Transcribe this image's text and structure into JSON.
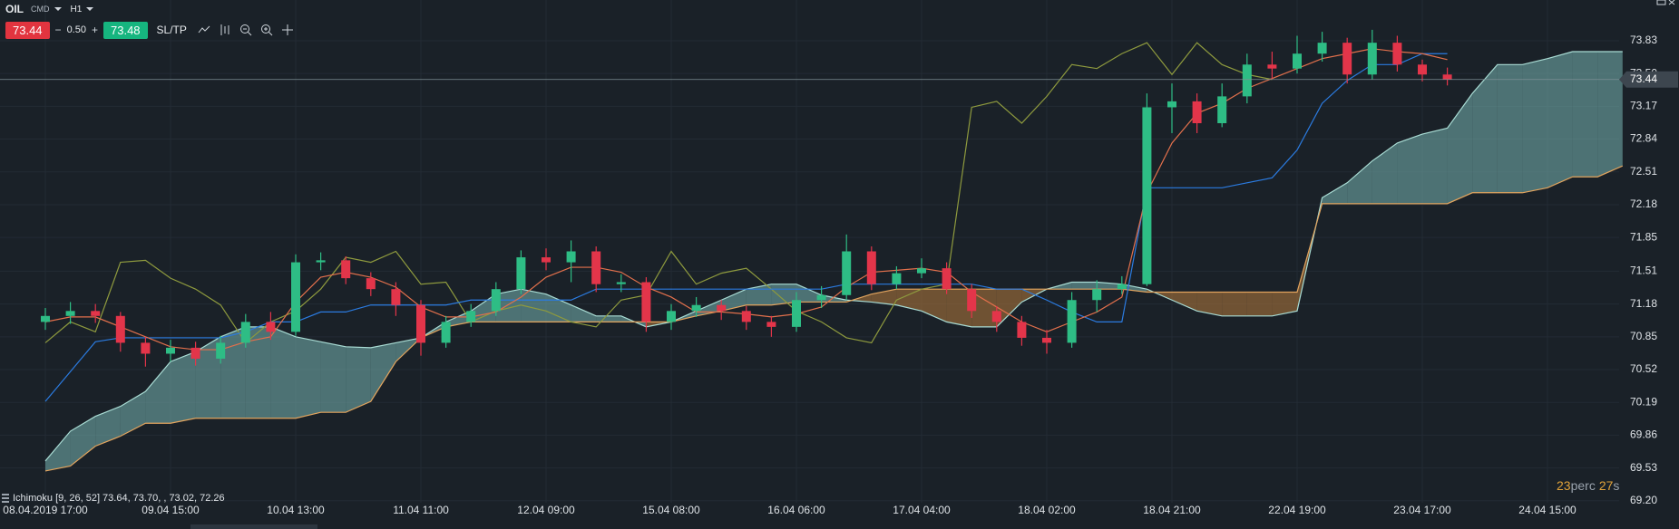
{
  "header": {
    "symbol": "OIL",
    "market": "CMD",
    "timeframe": "H1",
    "sell": "73.44",
    "minus": "−",
    "spread": "0.50",
    "plus": "+",
    "buy": "73.48",
    "sltp": "SL/TP"
  },
  "chart_data": {
    "type": "candlestick",
    "categories": [
      "08.04.2019 17:00",
      null,
      null,
      null,
      null,
      "09.04 15:00",
      null,
      null,
      null,
      null,
      "10.04 13:00",
      null,
      null,
      null,
      null,
      "11.04 11:00",
      null,
      null,
      null,
      null,
      "12.04 09:00",
      null,
      null,
      null,
      null,
      "15.04 08:00",
      null,
      null,
      null,
      null,
      "16.04 06:00",
      null,
      null,
      null,
      null,
      "17.04 04:00",
      null,
      null,
      null,
      null,
      "18.04 02:00",
      null,
      null,
      null,
      null,
      "18.04 21:00",
      null,
      null,
      null,
      null,
      "22.04 19:00",
      null,
      null,
      null,
      null,
      "23.04 17:00",
      null,
      null,
      null,
      null,
      "24.04 15:00",
      null,
      null,
      null
    ],
    "ohlc": {
      "up_color": "#2ebd85",
      "down_color": "#e3354a",
      "open": [
        71.0,
        71.06,
        71.11,
        71.06,
        70.79,
        70.68,
        70.74,
        70.63,
        70.79,
        71.0,
        70.9,
        71.6,
        71.62,
        71.44,
        71.33,
        71.17,
        70.79,
        71.0,
        71.11,
        71.33,
        71.65,
        71.6,
        71.71,
        71.38,
        71.4,
        71.0,
        71.11,
        71.17,
        71.11,
        71.0,
        70.95,
        71.22,
        71.27,
        71.71,
        71.38,
        71.49,
        71.54,
        71.33,
        71.11,
        71.0,
        70.84,
        70.79,
        71.22,
        71.33,
        71.38,
        73.16,
        73.22,
        73.0,
        73.27,
        73.59,
        73.55,
        73.7,
        73.81,
        73.49,
        73.81,
        73.59,
        73.49
      ],
      "high": [
        71.14,
        71.2,
        71.18,
        71.1,
        70.85,
        70.82,
        70.8,
        70.86,
        71.08,
        71.1,
        71.68,
        71.7,
        71.66,
        71.5,
        71.4,
        71.22,
        71.06,
        71.18,
        71.4,
        71.72,
        71.74,
        71.82,
        71.76,
        71.48,
        71.45,
        71.18,
        71.25,
        71.22,
        71.16,
        71.06,
        71.3,
        71.36,
        71.88,
        71.76,
        71.56,
        71.64,
        71.6,
        71.38,
        71.16,
        71.06,
        70.92,
        71.3,
        71.42,
        71.46,
        73.3,
        73.4,
        73.3,
        73.4,
        73.7,
        73.72,
        73.88,
        73.92,
        73.86,
        73.94,
        73.88,
        73.64,
        73.56
      ],
      "low": [
        70.92,
        70.98,
        70.99,
        70.7,
        70.55,
        70.6,
        70.56,
        70.58,
        70.74,
        70.82,
        70.86,
        71.52,
        71.38,
        71.26,
        71.06,
        70.66,
        70.74,
        70.95,
        71.06,
        71.28,
        71.52,
        71.4,
        71.3,
        71.3,
        70.9,
        70.92,
        71.05,
        71.02,
        70.92,
        70.85,
        70.9,
        71.14,
        71.22,
        71.32,
        71.33,
        71.44,
        71.28,
        71.04,
        70.9,
        70.76,
        70.68,
        70.74,
        71.1,
        71.28,
        71.36,
        72.9,
        72.9,
        72.96,
        73.2,
        73.45,
        73.5,
        73.62,
        73.4,
        73.44,
        73.52,
        73.42,
        73.38
      ],
      "close": [
        71.06,
        71.11,
        71.06,
        70.79,
        70.68,
        70.74,
        70.63,
        70.79,
        71.0,
        70.9,
        71.6,
        71.62,
        71.44,
        71.33,
        71.17,
        70.79,
        71.0,
        71.11,
        71.33,
        71.65,
        71.6,
        71.71,
        71.38,
        71.4,
        71.0,
        71.11,
        71.17,
        71.11,
        71.0,
        70.95,
        71.22,
        71.27,
        71.71,
        71.38,
        71.49,
        71.54,
        71.33,
        71.11,
        71.0,
        70.84,
        70.79,
        71.22,
        71.33,
        71.38,
        73.16,
        73.22,
        73.0,
        73.27,
        73.59,
        73.55,
        73.7,
        73.81,
        73.49,
        73.81,
        73.59,
        73.49,
        73.44
      ]
    },
    "cloud": {
      "up_fill": "#6fa9a6",
      "down_fill": "#a8733a",
      "span_a": {
        "color": "#a9dcd4",
        "values": [
          69.6,
          69.9,
          70.05,
          70.15,
          70.3,
          70.6,
          70.7,
          70.85,
          70.95,
          70.95,
          70.85,
          70.8,
          70.75,
          70.74,
          70.79,
          70.84,
          71.0,
          71.11,
          71.28,
          71.33,
          71.28,
          71.17,
          71.06,
          71.06,
          70.95,
          71.0,
          71.11,
          71.22,
          71.33,
          71.38,
          71.38,
          71.27,
          71.22,
          71.2,
          71.17,
          71.11,
          71.0,
          70.95,
          70.95,
          71.2,
          71.33,
          71.4,
          71.4,
          71.38,
          71.33,
          71.22,
          71.11,
          71.06,
          71.06,
          71.06,
          71.11,
          72.25,
          72.4,
          72.62,
          72.8,
          72.89,
          72.95,
          73.3,
          73.59,
          73.59,
          73.65,
          73.72,
          73.72,
          73.72
        ]
      },
      "span_b": {
        "color": "#e2a45e",
        "values": [
          69.5,
          69.55,
          69.75,
          69.85,
          69.98,
          69.98,
          70.03,
          70.03,
          70.03,
          70.03,
          70.03,
          70.09,
          70.09,
          70.2,
          70.6,
          70.84,
          70.95,
          71.0,
          71.0,
          71.0,
          71.0,
          71.0,
          71.0,
          71.0,
          71.0,
          71.0,
          71.06,
          71.11,
          71.17,
          71.17,
          71.2,
          71.2,
          71.2,
          71.28,
          71.33,
          71.33,
          71.33,
          71.33,
          71.33,
          71.33,
          71.33,
          71.33,
          71.33,
          71.33,
          71.3,
          71.3,
          71.3,
          71.3,
          71.3,
          71.3,
          71.3,
          72.19,
          72.19,
          72.19,
          72.19,
          72.19,
          72.19,
          72.3,
          72.3,
          72.3,
          72.35,
          72.46,
          72.46,
          72.57
        ]
      }
    },
    "lines": [
      {
        "color": "#8e9a3e",
        "values": [
          70.79,
          71.0,
          70.9,
          71.6,
          71.62,
          71.44,
          71.33,
          71.17,
          70.79,
          71.0,
          71.11,
          71.33,
          71.65,
          71.6,
          71.71,
          71.38,
          71.4,
          71.0,
          71.11,
          71.17,
          71.11,
          71.0,
          70.95,
          71.22,
          71.27,
          71.71,
          71.38,
          71.49,
          71.54,
          71.33,
          71.11,
          71.0,
          70.84,
          70.79,
          71.22,
          71.33,
          71.38,
          73.16,
          73.22,
          73.0,
          73.27,
          73.59,
          73.55,
          73.7,
          73.81,
          73.49,
          73.81,
          73.59,
          73.49,
          73.44,
          null,
          null,
          null,
          null,
          null,
          null,
          null
        ]
      },
      {
        "color": "#2b7be0",
        "values": [
          70.2,
          70.5,
          70.8,
          70.84,
          70.84,
          70.84,
          70.84,
          70.84,
          70.9,
          71.0,
          71.0,
          71.1,
          71.1,
          71.17,
          71.17,
          71.17,
          71.17,
          71.22,
          71.22,
          71.22,
          71.22,
          71.22,
          71.33,
          71.33,
          71.33,
          71.33,
          71.33,
          71.33,
          71.33,
          71.33,
          71.33,
          71.33,
          71.38,
          71.38,
          71.38,
          71.38,
          71.38,
          71.38,
          71.33,
          71.33,
          71.22,
          71.1,
          71.0,
          71.0,
          72.35,
          72.35,
          72.35,
          72.35,
          72.4,
          72.45,
          72.73,
          73.2,
          73.43,
          73.59,
          73.59,
          73.7,
          73.7
        ]
      },
      {
        "color": "#e2704c",
        "values": [
          71.0,
          71.05,
          71.05,
          70.95,
          70.85,
          70.75,
          70.72,
          70.72,
          70.8,
          70.85,
          71.2,
          71.45,
          71.5,
          71.45,
          71.35,
          71.15,
          71.05,
          71.05,
          71.1,
          71.25,
          71.45,
          71.55,
          71.55,
          71.5,
          71.35,
          71.25,
          71.1,
          71.1,
          71.08,
          71.05,
          71.08,
          71.15,
          71.35,
          71.5,
          71.52,
          71.54,
          71.5,
          71.3,
          71.15,
          71.0,
          70.9,
          71.0,
          71.1,
          71.25,
          72.3,
          72.8,
          73.1,
          73.2,
          73.35,
          73.45,
          73.55,
          73.65,
          73.7,
          73.75,
          73.72,
          73.7,
          73.64
        ]
      }
    ],
    "last_price": 73.44,
    "ylim": [
      69.18,
      74.24
    ],
    "yticks": [
      73.83,
      {
        "value": 73.5,
        "label": "73.50"
      },
      73.17,
      72.84,
      72.51,
      72.18,
      71.85,
      71.51,
      71.18,
      70.85,
      70.52,
      70.19,
      69.86,
      69.53,
      {
        "value": 69.2,
        "label": "69.20"
      }
    ],
    "grid": true,
    "indicator_label": "Ichimoku [9, 26, 52] 73.64, 73.70, , 73.02, 72.26",
    "timer": {
      "minutes": "23",
      "minutes_unit": "perc",
      "seconds": "27",
      "seconds_unit": "s"
    }
  }
}
